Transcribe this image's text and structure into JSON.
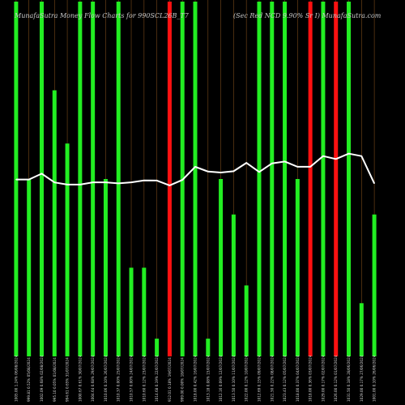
{
  "title_left": "MunafaSutra  Money Flow  Charts for 990SCL26B_T7",
  "title_right": "(Sec Red NCD 9.90% Sr I) MunafaSutra.com",
  "colors": {
    "background": "#000000",
    "up_bar": "#22ee22",
    "down_bar": "#ff1111",
    "line": "#ffffff",
    "grid": "#7a4a1a"
  },
  "chart_data": {
    "type": "bar",
    "title": "MunafaSutra  Money Flow  Charts for 990SCL26B_T7",
    "subtitle": "(Sec Red NCD 9.90% Sr I) MunafaSutra.com",
    "ylim": [
      0,
      100
    ],
    "categories": [
      "1005.00 1.24% 06/08/2024",
      "999.81 0.52% 05/08/2024",
      "1002.09 0.68% 02/08/2024",
      "995.10 0.05% 01/08/2024",
      "994.61 0.65% 31/07/2024",
      "1000.67 0.61% 30/07/2024",
      "1004.64 0.68% 29/07/2024",
      "1010.06 0.10% 26/07/2024",
      "1010.37 0.00% 25/07/2024",
      "1010.57 0.00% 24/07/2024",
      "1010.60 0.12% 23/07/2024",
      "1014.68 0.19% 22/07/2024",
      "912.01 0.18% 19/07/2024",
      "999.00 0.00% 18/07/2024",
      "1018.00 0.42% 16/07/2024",
      "1013.18 0.08% 15/07/2024",
      "1012.16 0.09% 12/07/2024",
      "1013.50 0.10% 11/07/2024",
      "1022.00 0.12% 10/07/2024",
      "1012.69 0.15% 09/07/2024",
      "1021.50 0.22% 08/07/2024",
      "1023.43 0.12% 05/07/2024",
      "1018.00 0.37% 04/07/2024",
      "1018.00 0.36% 03/07/2024",
      "1029.00 0.17% 02/07/2024",
      "1026.00 0.12% 01/07/2024",
      "1031.50 0.18% 28/06/2024",
      "1029.00 0.17% 27/06/2024",
      "1001.00 0.10% 26/06/2024"
    ],
    "series": [
      {
        "values": [
          100,
          50,
          100,
          75,
          60,
          100,
          100,
          50,
          100,
          25,
          25,
          5,
          100,
          100,
          100,
          5,
          50,
          40,
          20,
          100,
          100,
          100,
          50,
          100,
          100,
          100,
          100,
          15,
          40
        ],
        "colors": [
          "up",
          "up",
          "up",
          "up",
          "up",
          "up",
          "up",
          "up",
          "up",
          "up",
          "up",
          "up",
          "down",
          "up",
          "up",
          "up",
          "up",
          "up",
          "up",
          "up",
          "up",
          "up",
          "up",
          "down",
          "up",
          "down",
          "up",
          "up",
          "up"
        ]
      },
      {
        "values": [
          1005.0,
          1005.0,
          1011.0,
          1002.0,
          999.81,
          999.81,
          1002.09,
          1002.09,
          1001.0,
          1002.09,
          1004.0,
          1003.9,
          999.0,
          1004.64,
          1018.0,
          1013.18,
          1012.16,
          1013.5,
          1022.0,
          1012.69,
          1021.5,
          1023.43,
          1018.0,
          1018.0,
          1029.0,
          1026.0,
          1031.5,
          1029.0,
          1001.0
        ]
      }
    ]
  }
}
